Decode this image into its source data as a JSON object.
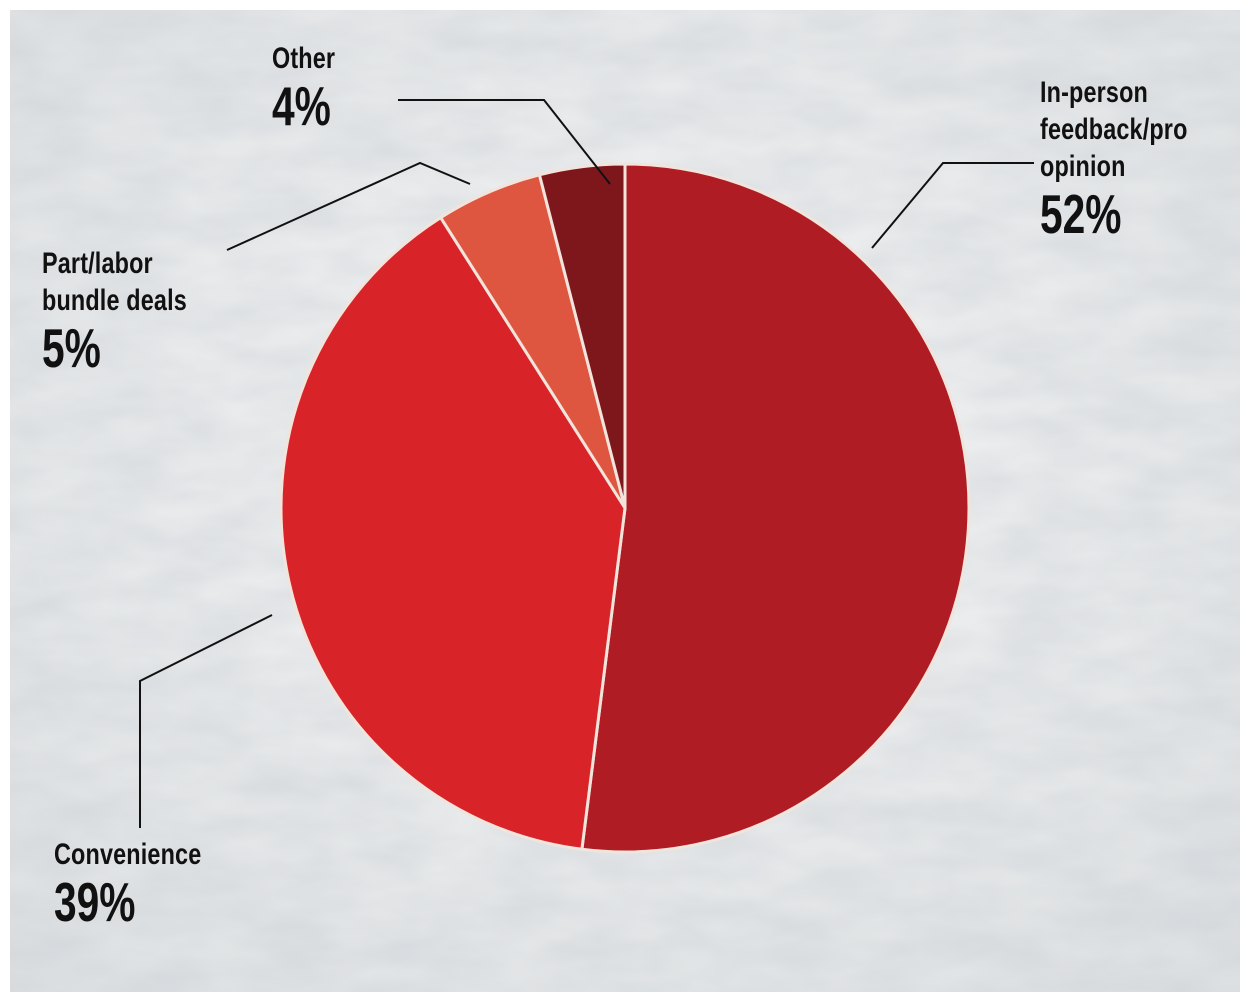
{
  "chart_data": {
    "type": "pie",
    "title": "",
    "start": "12 o'clock, clockwise",
    "slices": [
      {
        "key": "inperson",
        "label": "In-person feedback/pro opinion",
        "label_lines": [
          "In-person",
          "feedback/pro",
          "opinion"
        ],
        "value": 52,
        "value_text": "52%",
        "color": "#b01c23"
      },
      {
        "key": "convenience",
        "label": "Convenience",
        "label_lines": [
          "Convenience"
        ],
        "value": 39,
        "value_text": "39%",
        "color": "#d82429"
      },
      {
        "key": "bundle",
        "label": "Part/labor bundle deals",
        "label_lines": [
          "Part/labor",
          "bundle deals"
        ],
        "value": 5,
        "value_text": "5%",
        "color": "#df5640"
      },
      {
        "key": "other",
        "label": "Other",
        "label_lines": [
          "Other"
        ],
        "value": 4,
        "value_text": "4%",
        "color": "#7d171c"
      }
    ],
    "slice_border_color": "#f1e4dc",
    "background_color": "#e9ebec",
    "leader_line_color": "#111111"
  }
}
